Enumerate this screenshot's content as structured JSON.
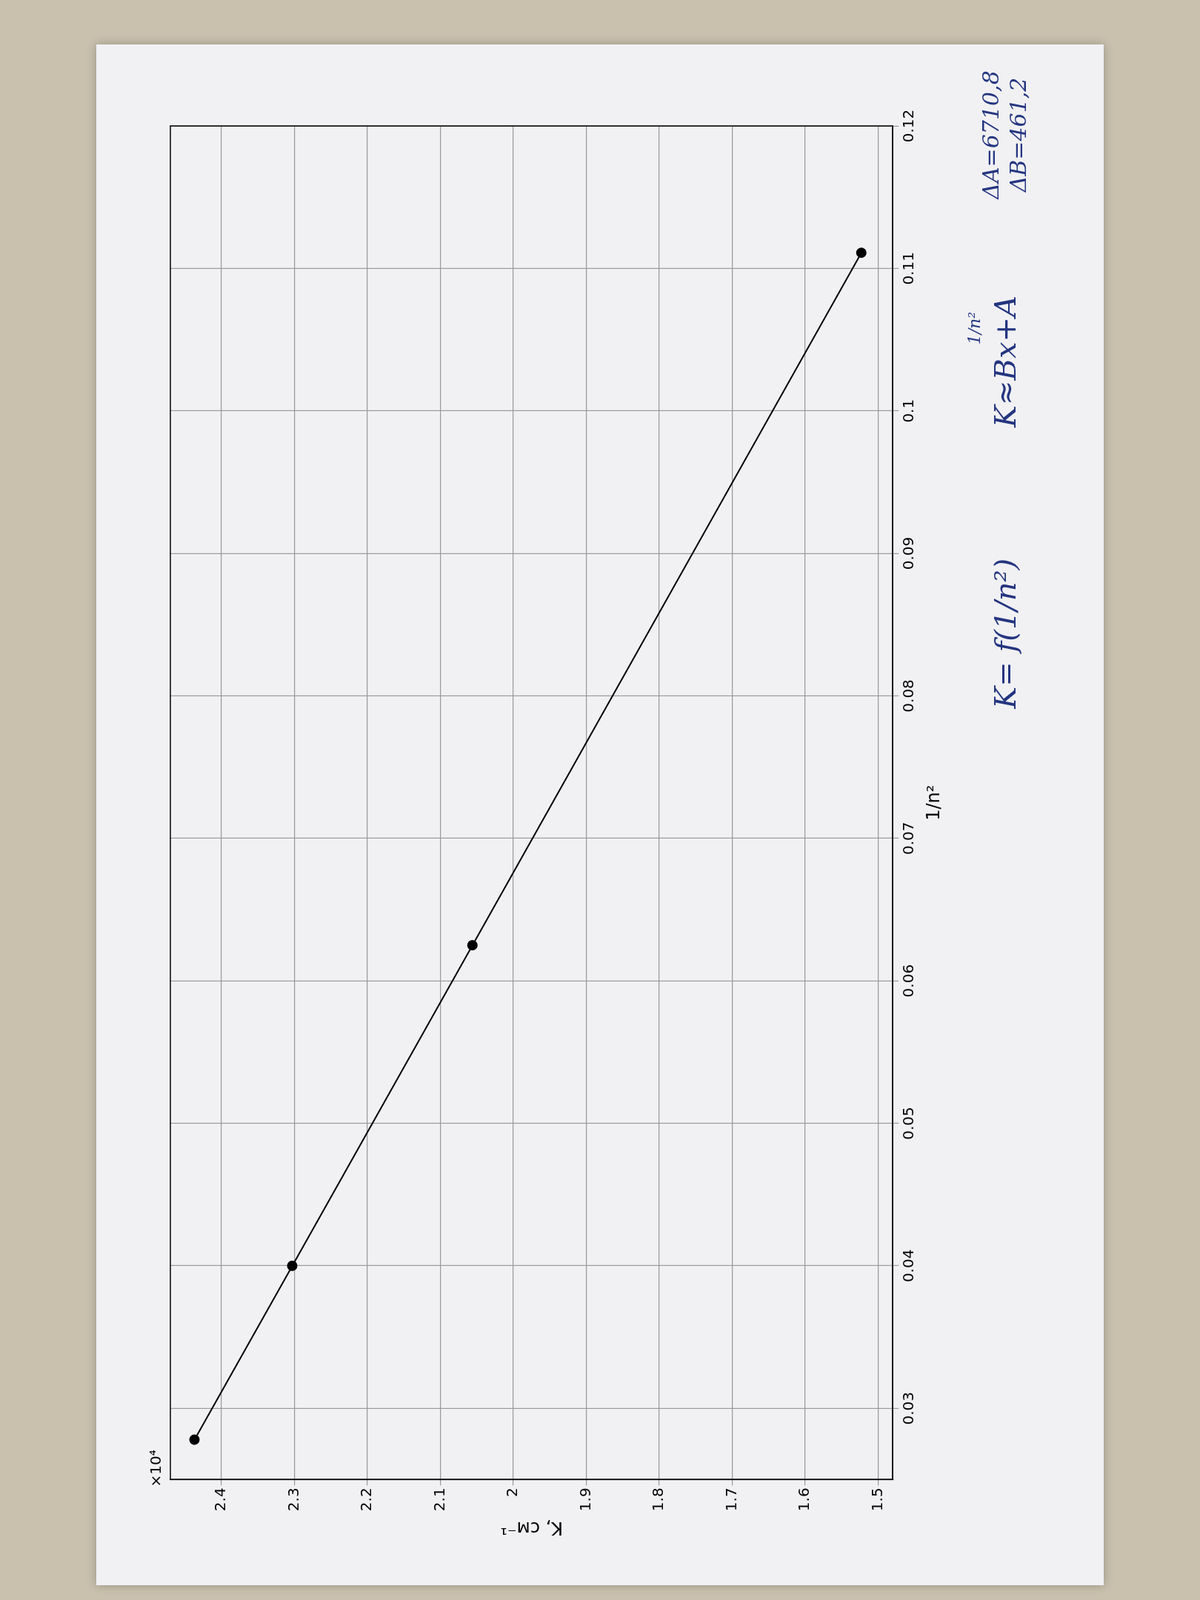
{
  "chart_data": {
    "type": "line",
    "x_label": "1/n²",
    "y_label": "K, см⁻¹",
    "y_multiplier": "×10⁴",
    "x": [
      0.0278,
      0.04,
      0.0625,
      0.1111
    ],
    "values": [
      2.437,
      2.303,
      2.056,
      1.523
    ],
    "color": "#000000",
    "marker": "circle",
    "line_style": "solid",
    "xlim": [
      0.025,
      0.12
    ],
    "xticks": [
      0.03,
      0.04,
      0.05,
      0.06,
      0.07,
      0.08,
      0.09,
      0.1,
      0.11,
      0.12
    ],
    "ylim": [
      1.48,
      2.47
    ],
    "yticks": [
      1.5,
      1.6,
      1.7,
      1.8,
      1.9,
      2,
      2.1,
      2.2,
      2.3,
      2.4
    ],
    "grid": true,
    "annotations": [
      "K= f(1/n²)",
      "K≈Bx+A",
      "1/n²",
      "ΔA=6710,8",
      "ΔB=461,2"
    ]
  }
}
